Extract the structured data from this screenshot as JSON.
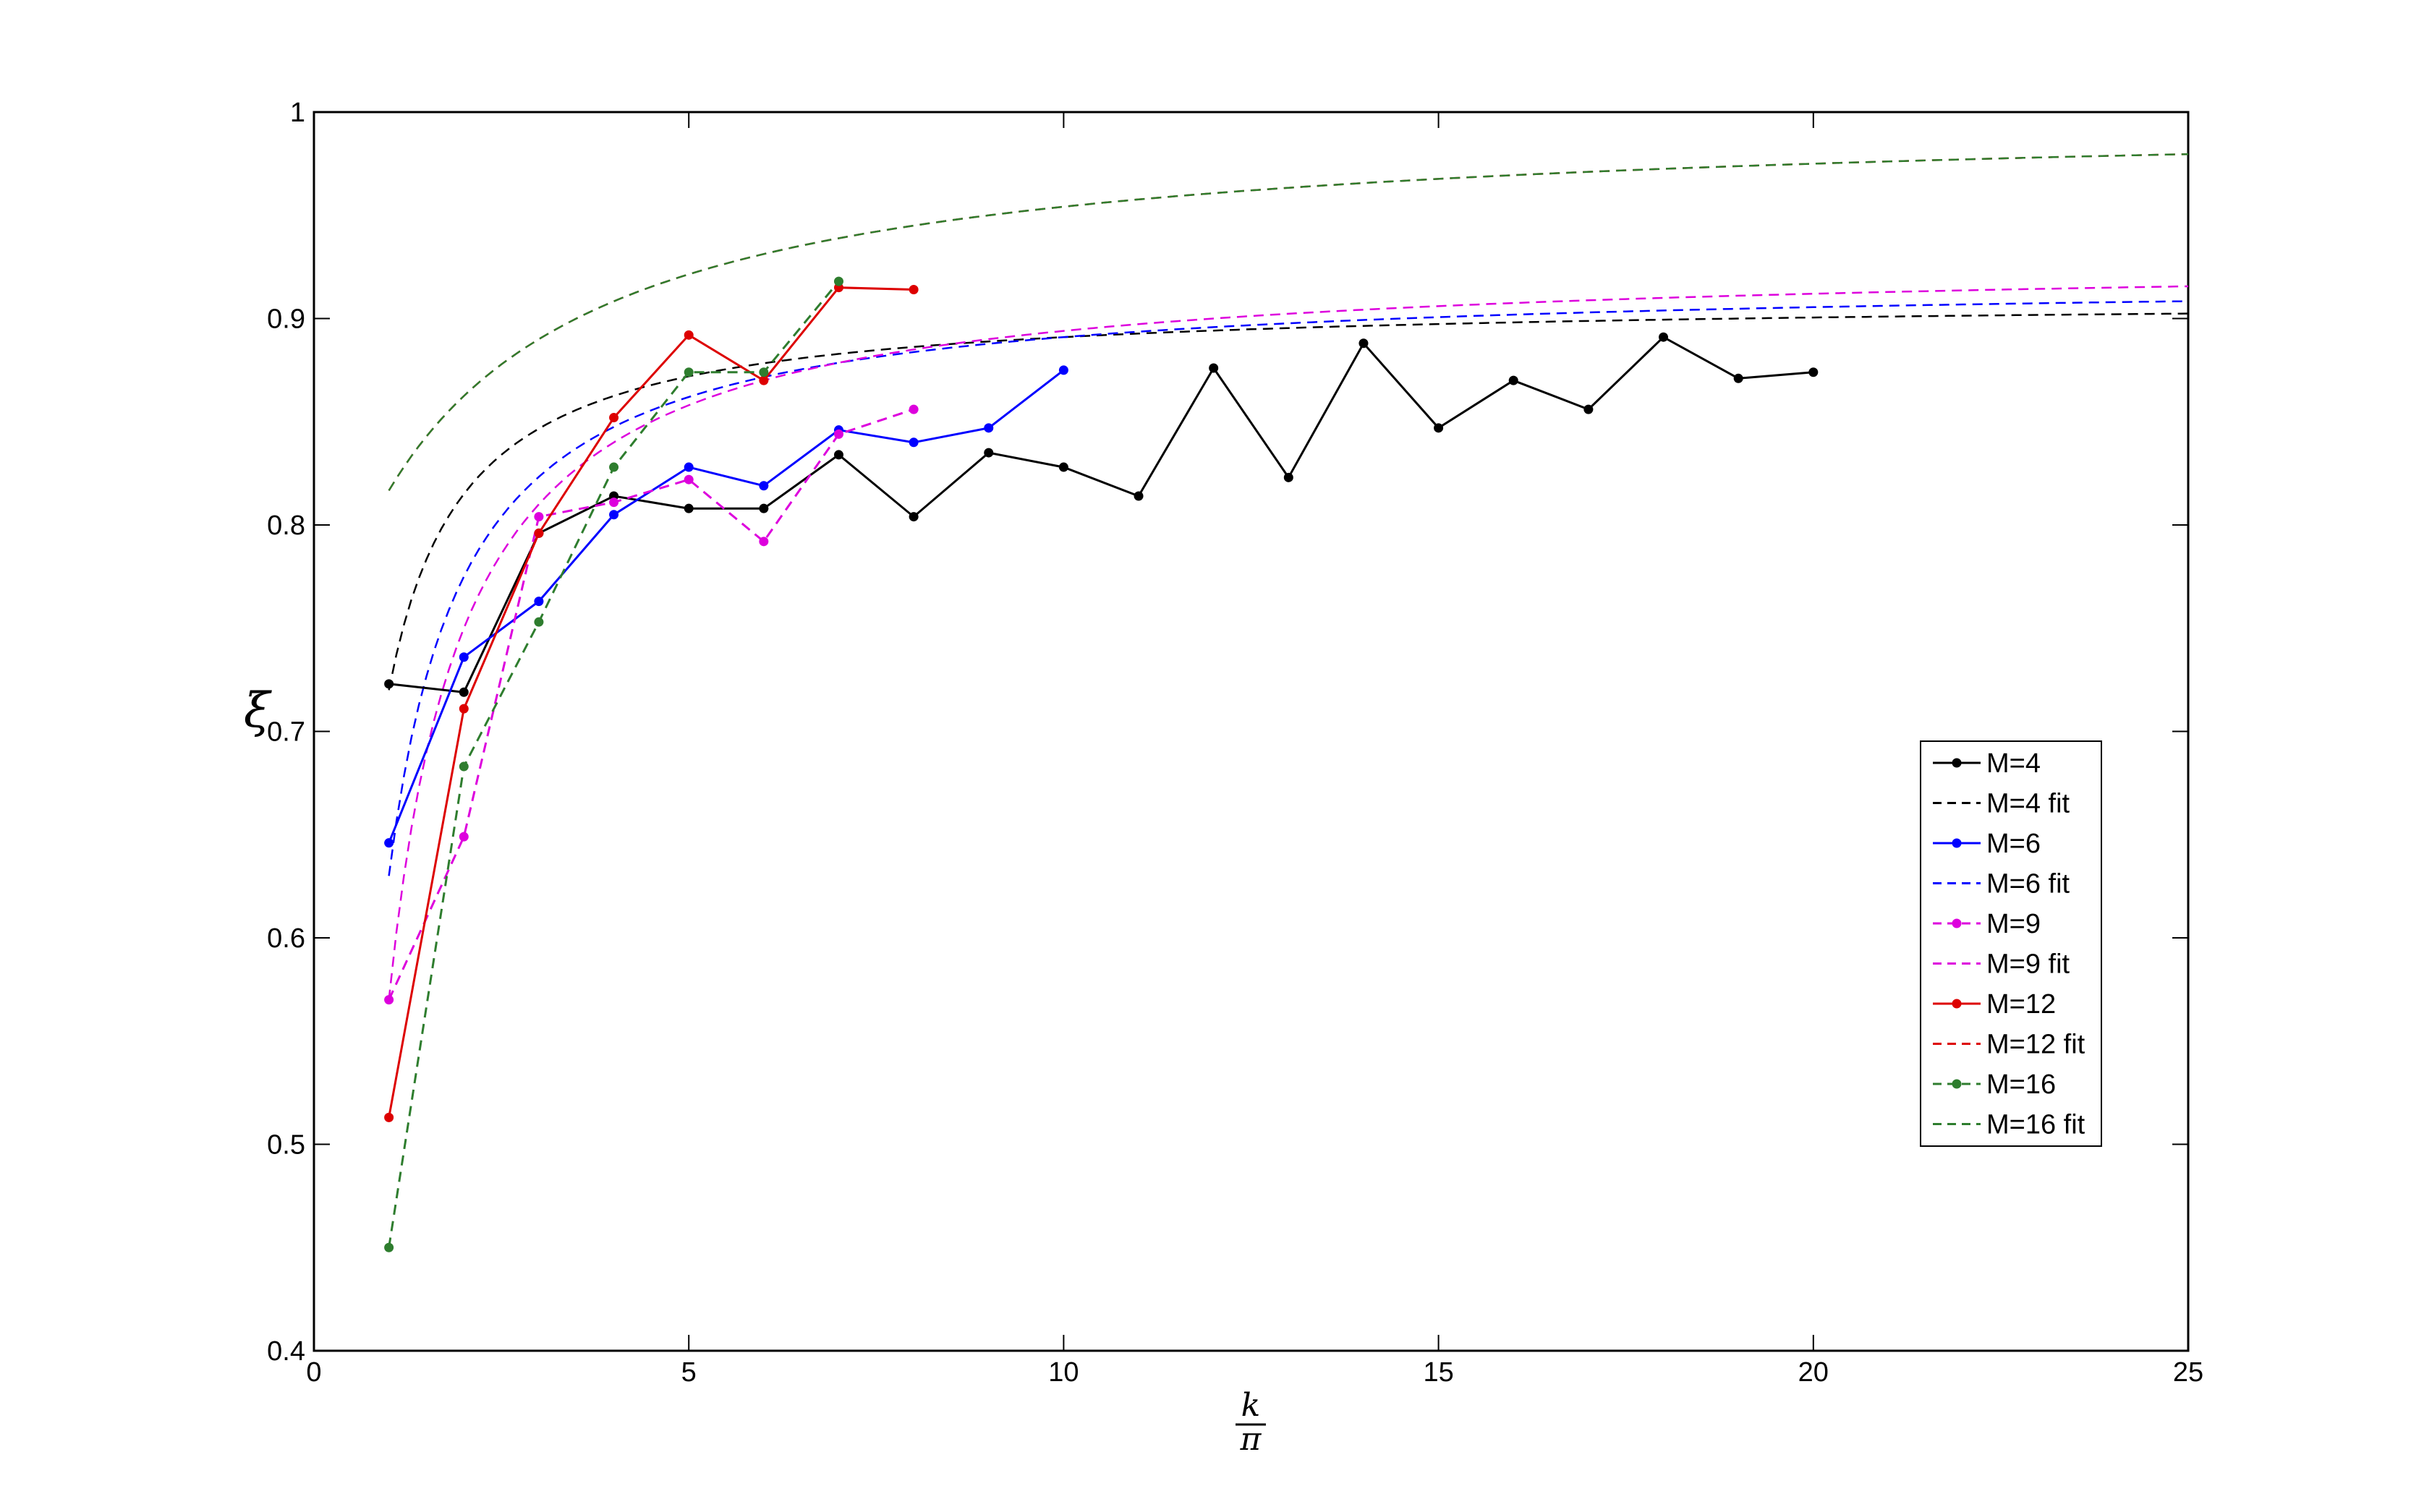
{
  "chart_data": {
    "type": "line",
    "title": "",
    "xlabel_numerator": "k",
    "xlabel_denominator": "π",
    "ylabel": "ξ",
    "xlim": [
      0,
      25
    ],
    "ylim": [
      0.4,
      1.0
    ],
    "xticks": [
      0,
      5,
      10,
      15,
      20,
      25
    ],
    "xtick_labels": [
      "0",
      "5",
      "10",
      "15",
      "20",
      "25"
    ],
    "yticks": [
      0.4,
      0.5,
      0.6,
      0.7,
      0.8,
      0.9,
      1.0
    ],
    "ytick_labels": [
      "0.4",
      "0.5",
      "0.6",
      "0.7",
      "0.8",
      "0.9",
      "1"
    ],
    "grid": false,
    "legend_position": "right",
    "series": [
      {
        "name": "M=4",
        "color": "#000000",
        "style": "solid-markers",
        "x": [
          1,
          2,
          3,
          4,
          5,
          6,
          7,
          8,
          9,
          10,
          11,
          12,
          13,
          14,
          15,
          16,
          17,
          18,
          19,
          20
        ],
        "y": [
          0.723,
          0.719,
          0.796,
          0.814,
          0.808,
          0.808,
          0.834,
          0.804,
          0.835,
          0.828,
          0.814,
          0.876,
          0.823,
          0.888,
          0.847,
          0.87,
          0.856,
          0.891,
          0.871,
          0.874
        ]
      },
      {
        "name": "M=4 fit",
        "color": "#000000",
        "style": "dashed",
        "a": 0.91,
        "b": 0.19,
        "x_start": 1
      },
      {
        "name": "M=6",
        "color": "#0000ff",
        "style": "solid-markers",
        "x": [
          1,
          2,
          3,
          4,
          5,
          6,
          7,
          8,
          9,
          10
        ],
        "y": [
          0.646,
          0.736,
          0.763,
          0.805,
          0.828,
          0.819,
          0.846,
          0.84,
          0.847,
          0.875
        ]
      },
      {
        "name": "M=6 fit",
        "color": "#0000ff",
        "style": "dashed",
        "a": 0.92,
        "b": 0.29,
        "x_start": 1
      },
      {
        "name": "M=9",
        "color": "#dd00dd",
        "style": "dashed-markers",
        "x": [
          1,
          2,
          3,
          4,
          5,
          6,
          7,
          8
        ],
        "y": [
          0.57,
          0.649,
          0.804,
          0.811,
          0.822,
          0.792,
          0.844,
          0.856
        ]
      },
      {
        "name": "M=9 fit",
        "color": "#dd00dd",
        "style": "dashed",
        "a": 0.93,
        "b": 0.36,
        "x_start": 1
      },
      {
        "name": "M=12",
        "color": "#dd0000",
        "style": "solid-markers",
        "x": [
          1,
          2,
          3,
          4,
          5,
          6,
          7,
          8
        ],
        "y": [
          0.513,
          0.711,
          0.796,
          0.852,
          0.892,
          0.87,
          0.915,
          0.914
        ]
      },
      {
        "name": "M=12 fit",
        "color": "#dd0000",
        "style": "dashed",
        "a": 1.0,
        "b": 0.55,
        "c": 2.0,
        "x_start": 1
      },
      {
        "name": "M=16",
        "color": "#2e7d2e",
        "style": "dashed-markers",
        "x": [
          1,
          2,
          3,
          4,
          5,
          6,
          7
        ],
        "y": [
          0.45,
          0.683,
          0.753,
          0.828,
          0.874,
          0.874,
          0.918
        ]
      },
      {
        "name": "M=16 fit",
        "color": "#2e7d2e",
        "style": "dashed",
        "a": 1.0,
        "b": 0.55,
        "c": 2.0,
        "x_start": 1
      }
    ]
  }
}
